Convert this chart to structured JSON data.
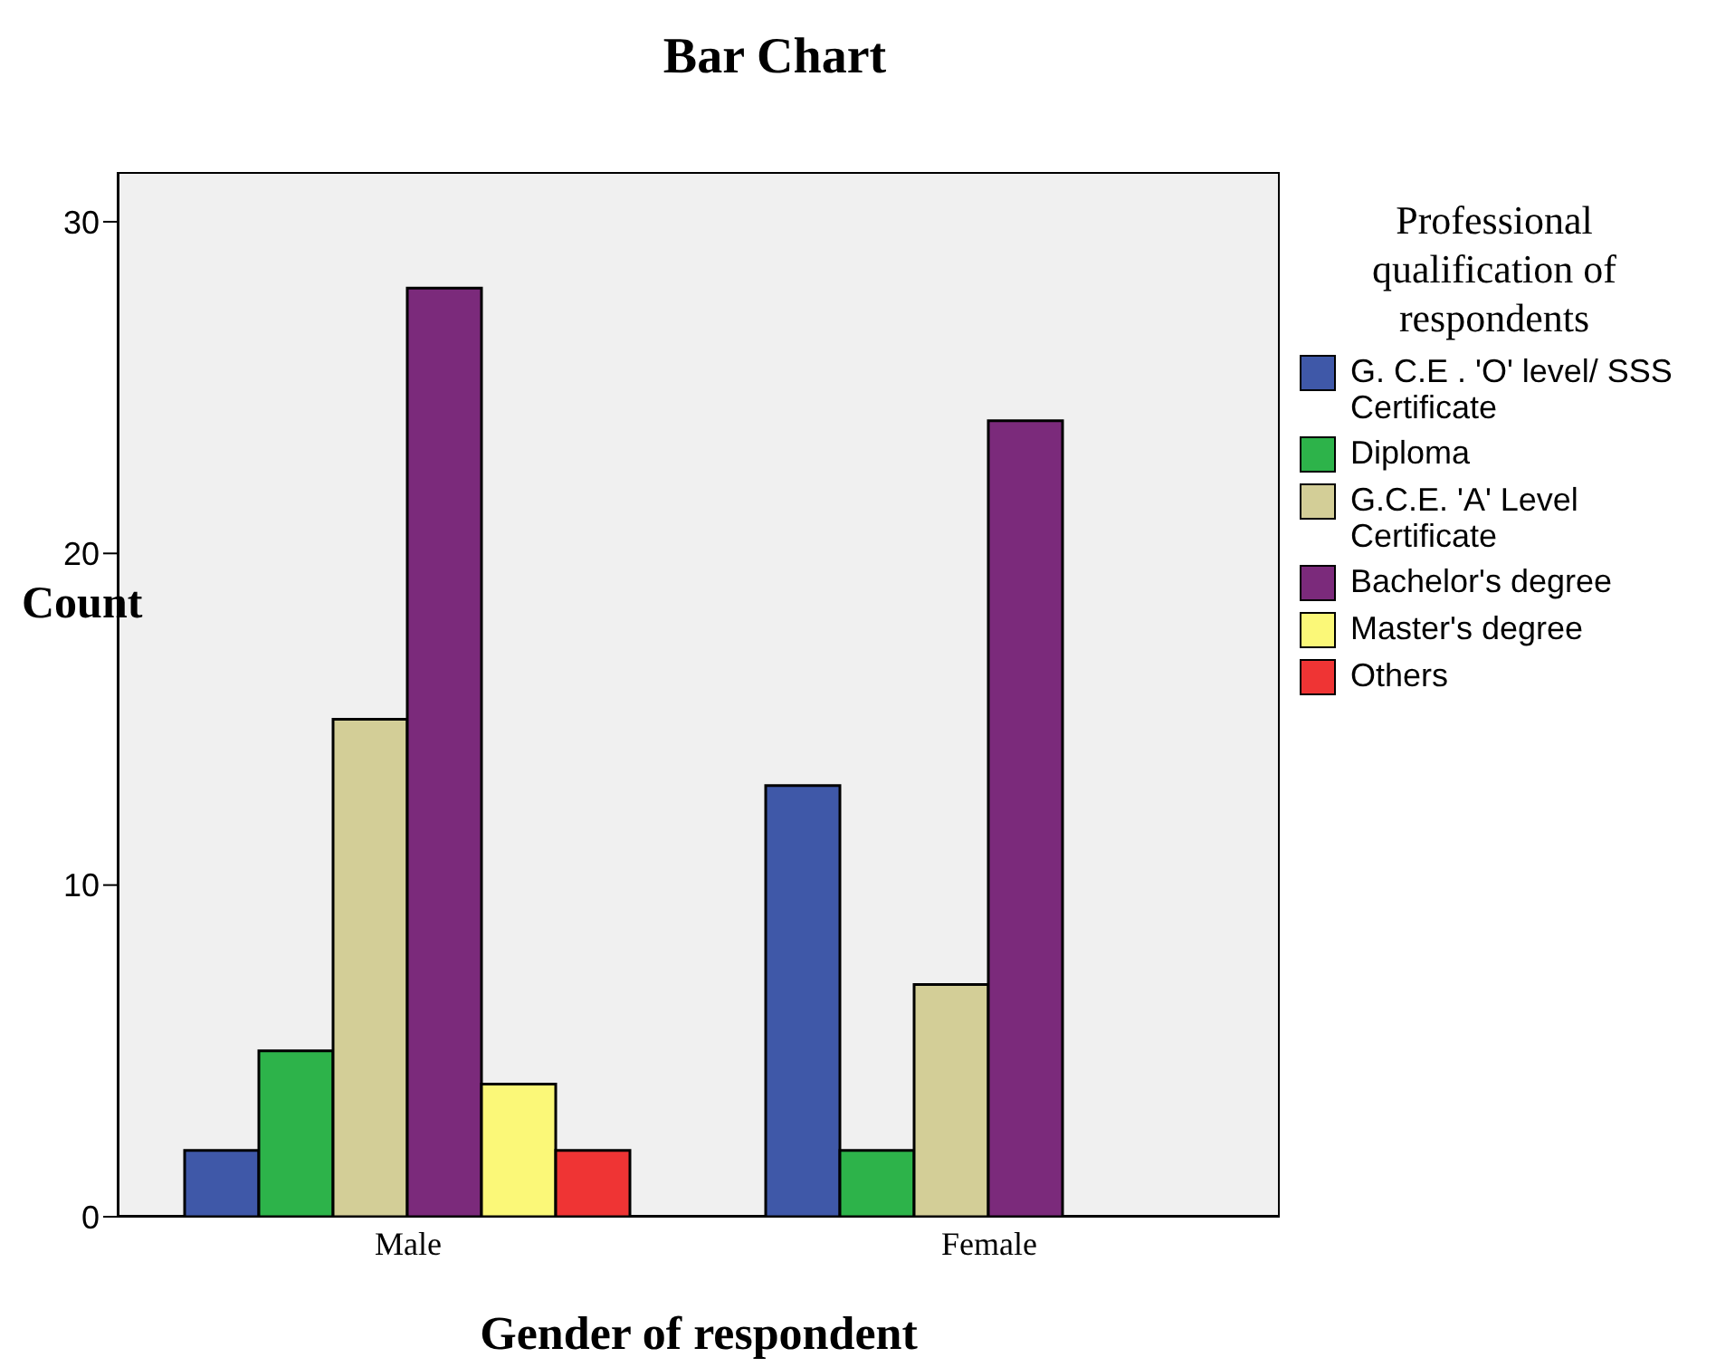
{
  "chart_data": {
    "type": "bar",
    "title": "Bar Chart",
    "xlabel": "Gender of respondent",
    "ylabel": "Count",
    "legend_title": "Professional qualification of respondents",
    "categories": [
      "Male",
      "Female"
    ],
    "series": [
      {
        "name": "G. C.E . 'O' level/ SSS Certificate",
        "color": "#3f58a8",
        "values": [
          2,
          13
        ]
      },
      {
        "name": "Diploma",
        "color": "#2db34a",
        "values": [
          5,
          2
        ]
      },
      {
        "name": "G.C.E. 'A' Level Certificate",
        "color": "#d3ce97",
        "values": [
          15,
          7
        ]
      },
      {
        "name": "Bachelor's degree",
        "color": "#7b2a7b",
        "values": [
          28,
          24
        ]
      },
      {
        "name": "Master's degree",
        "color": "#fbf878",
        "values": [
          4,
          null
        ]
      },
      {
        "name": "Others",
        "color": "#ef3434",
        "values": [
          2,
          null
        ]
      }
    ],
    "ylim": [
      0,
      31.5
    ],
    "yticks": [
      0,
      10,
      20,
      30
    ],
    "grid": false,
    "legend": "right"
  }
}
